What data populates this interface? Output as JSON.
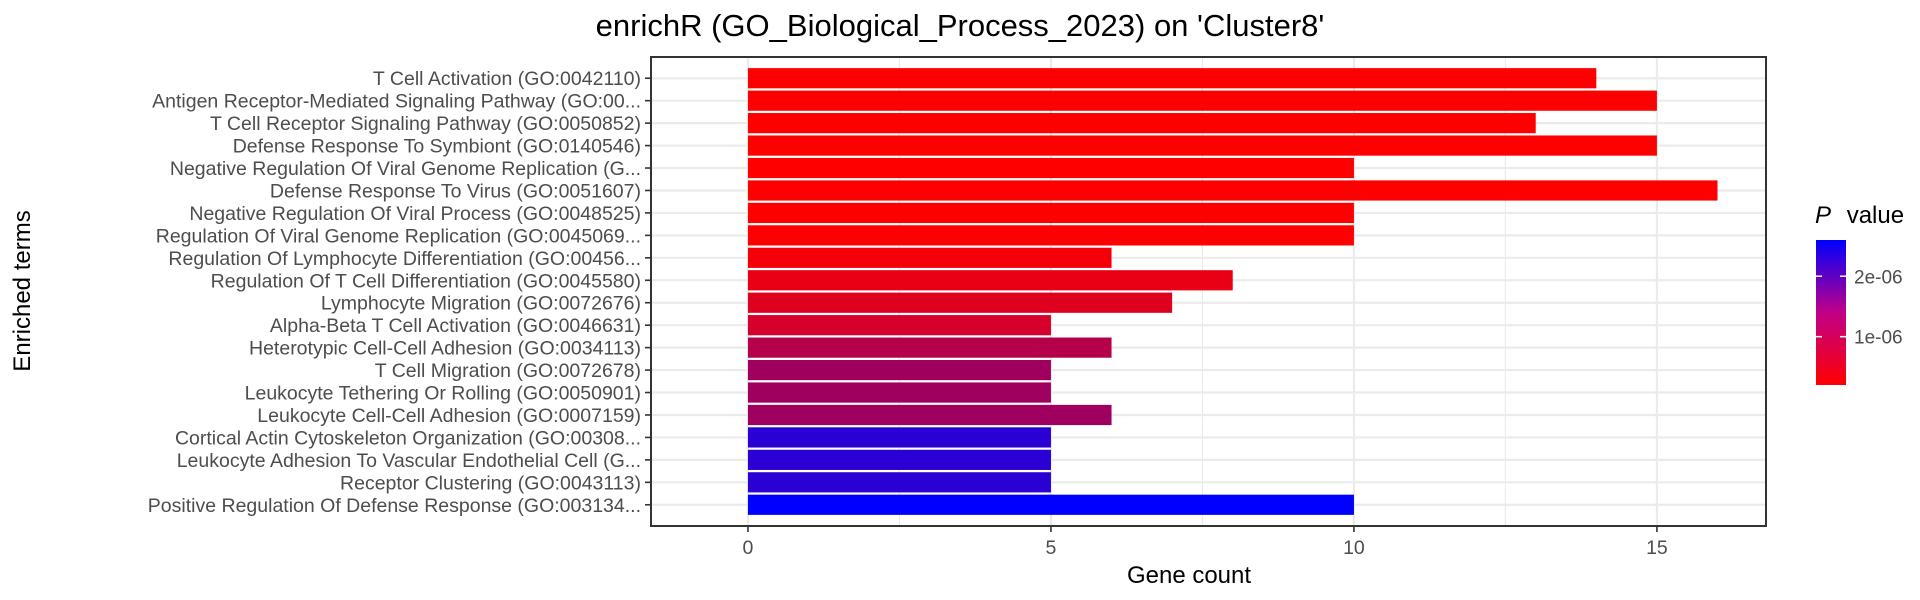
{
  "chart_data": {
    "type": "bar",
    "orientation": "horizontal",
    "title": "enrichR (GO_Biological_Process_2023) on 'Cluster8'",
    "xlabel": "Gene count",
    "ylabel": "Enriched terms",
    "xlim": [
      -1.6,
      16.8
    ],
    "xticks": [
      0,
      5,
      10,
      15
    ],
    "xtick_labels": [
      "0",
      "5",
      "10",
      "15"
    ],
    "grid": true,
    "legend": {
      "title_italic": "P",
      "title_rest": "value",
      "placement": "right",
      "range": [
        2e-07,
        2.6e-06
      ],
      "ticks": [
        1e-06,
        2e-06
      ],
      "tick_labels": [
        "1e-06",
        "2e-06"
      ],
      "low_color": "#ff0000",
      "high_color": "#0000ff"
    },
    "categories": [
      "T Cell Activation (GO:0042110)",
      "Antigen Receptor-Mediated Signaling Pathway (GO:00...",
      "T Cell Receptor Signaling Pathway (GO:0050852)",
      "Defense Response To Symbiont (GO:0140546)",
      "Negative Regulation Of Viral Genome Replication (G...",
      "Defense Response To Virus (GO:0051607)",
      "Negative Regulation Of Viral Process (GO:0048525)",
      "Regulation Of Viral Genome Replication (GO:0045069...",
      "Regulation Of Lymphocyte Differentiation (GO:00456...",
      "Regulation Of T Cell Differentiation (GO:0045580)",
      "Lymphocyte Migration (GO:0072676)",
      "Alpha-Beta T Cell Activation (GO:0046631)",
      "Heterotypic Cell-Cell Adhesion (GO:0034113)",
      "T Cell Migration (GO:0072678)",
      "Leukocyte Tethering Or Rolling (GO:0050901)",
      "Leukocyte Cell-Cell Adhesion (GO:0007159)",
      "Cortical Actin Cytoskeleton Organization (GO:00308...",
      "Leukocyte Adhesion To Vascular Endothelial Cell (G...",
      "Receptor Clustering (GO:0043113)",
      "Positive Regulation Of Defense Response (GO:003134..."
    ],
    "values": [
      14,
      15,
      13,
      15,
      10,
      16,
      10,
      10,
      6,
      8,
      7,
      5,
      6,
      5,
      5,
      6,
      5,
      5,
      5,
      10
    ],
    "p_values": [
      2e-07,
      2e-07,
      2e-07,
      2e-07,
      2e-07,
      2e-07,
      2e-07,
      2e-07,
      3e-07,
      4e-07,
      5e-07,
      6e-07,
      9e-07,
      1.1e-06,
      1.1e-06,
      1.1e-06,
      2.2e-06,
      2.2e-06,
      2.2e-06,
      2.6e-06
    ]
  }
}
